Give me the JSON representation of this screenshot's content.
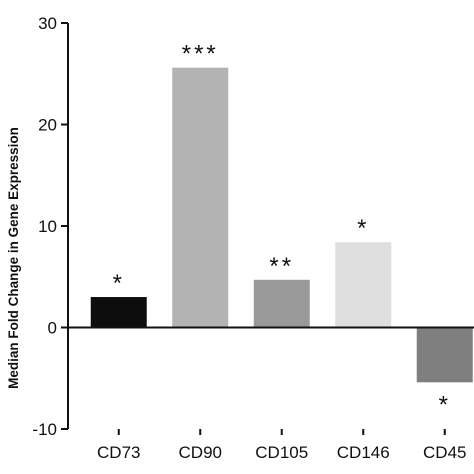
{
  "chart_data": {
    "type": "bar",
    "ylabel": "Median Fold Change in Gene Expression",
    "ylim": [
      -10,
      30
    ],
    "yticks": [
      -10,
      0,
      10,
      20,
      30
    ],
    "categories": [
      "CD73",
      "CD90",
      "CD105",
      "CD146",
      "CD45"
    ],
    "values": [
      3.0,
      25.6,
      4.7,
      8.4,
      -5.4
    ],
    "significance": [
      "*",
      "***",
      "**",
      "*",
      "*"
    ],
    "colors": [
      "#0d0d0d",
      "#b3b3b3",
      "#999999",
      "#dedede",
      "#7f7f7f"
    ],
    "grid": false
  }
}
